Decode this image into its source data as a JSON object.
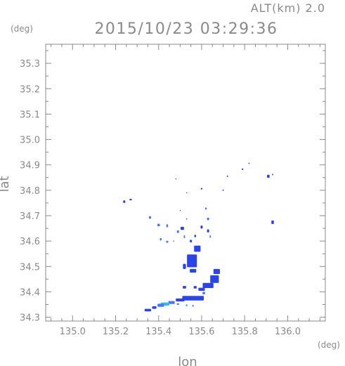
{
  "header": {
    "altitude_label": "ALT(km) 2.0",
    "timestamp": "2015/10/23 03:29:36"
  },
  "axes": {
    "y_unit": "(deg)",
    "x_unit": "(deg)",
    "xlabel": "lon",
    "ylabel": "lat"
  },
  "chart_data": {
    "type": "scatter",
    "xlim": [
      134.875,
      136.175
    ],
    "ylim": [
      34.285,
      35.375
    ],
    "x_ticks": [
      {
        "value": 135.0,
        "label": "135.0"
      },
      {
        "value": 135.2,
        "label": "135.2"
      },
      {
        "value": 135.4,
        "label": "135.4"
      },
      {
        "value": 135.6,
        "label": "135.6"
      },
      {
        "value": 135.8,
        "label": "135.8"
      },
      {
        "value": 136.0,
        "label": "136.0"
      }
    ],
    "y_ticks": [
      {
        "value": 34.3,
        "label": "34.3"
      },
      {
        "value": 34.4,
        "label": "34.4"
      },
      {
        "value": 34.5,
        "label": "34.5"
      },
      {
        "value": 34.6,
        "label": "34.6"
      },
      {
        "value": 34.7,
        "label": "34.7"
      },
      {
        "value": 34.8,
        "label": "34.8"
      },
      {
        "value": 34.9,
        "label": "34.9"
      },
      {
        "value": 35.0,
        "label": "35.0"
      },
      {
        "value": 35.1,
        "label": "35.1"
      },
      {
        "value": 35.2,
        "label": "35.2"
      },
      {
        "value": 35.3,
        "label": "35.3"
      }
    ],
    "grid": false,
    "colors": {
      "strong": "#2a44e6",
      "medium": "#4a78f0",
      "light": "#3ab8e8",
      "frame": "#8a8a8a"
    },
    "cells": [
      {
        "lon": 135.24,
        "lat": 34.755,
        "dlon": 0.01,
        "dlat": 0.01,
        "c": "strong"
      },
      {
        "lon": 135.27,
        "lat": 34.763,
        "dlon": 0.012,
        "dlat": 0.006,
        "c": "strong"
      },
      {
        "lon": 135.36,
        "lat": 34.693,
        "dlon": 0.01,
        "dlat": 0.01,
        "c": "medium"
      },
      {
        "lon": 135.4,
        "lat": 34.663,
        "dlon": 0.012,
        "dlat": 0.01,
        "c": "medium"
      },
      {
        "lon": 135.44,
        "lat": 34.66,
        "dlon": 0.008,
        "dlat": 0.012,
        "c": "medium"
      },
      {
        "lon": 135.41,
        "lat": 34.607,
        "dlon": 0.008,
        "dlat": 0.01,
        "c": "medium"
      },
      {
        "lon": 135.44,
        "lat": 34.597,
        "dlon": 0.01,
        "dlat": 0.008,
        "c": "medium"
      },
      {
        "lon": 135.49,
        "lat": 34.637,
        "dlon": 0.01,
        "dlat": 0.01,
        "c": "medium"
      },
      {
        "lon": 135.51,
        "lat": 34.65,
        "dlon": 0.016,
        "dlat": 0.012,
        "c": "strong"
      },
      {
        "lon": 135.53,
        "lat": 34.687,
        "dlon": 0.006,
        "dlat": 0.006,
        "c": "medium"
      },
      {
        "lon": 135.52,
        "lat": 34.617,
        "dlon": 0.006,
        "dlat": 0.012,
        "c": "medium"
      },
      {
        "lon": 135.55,
        "lat": 34.6,
        "dlon": 0.01,
        "dlat": 0.01,
        "c": "strong"
      },
      {
        "lon": 135.57,
        "lat": 34.62,
        "dlon": 0.008,
        "dlat": 0.01,
        "c": "strong"
      },
      {
        "lon": 135.6,
        "lat": 34.655,
        "dlon": 0.01,
        "dlat": 0.012,
        "c": "strong"
      },
      {
        "lon": 135.63,
        "lat": 34.687,
        "dlon": 0.01,
        "dlat": 0.01,
        "c": "medium"
      },
      {
        "lon": 135.63,
        "lat": 34.64,
        "dlon": 0.01,
        "dlat": 0.012,
        "c": "strong"
      },
      {
        "lon": 135.64,
        "lat": 34.618,
        "dlon": 0.006,
        "dlat": 0.01,
        "c": "medium"
      },
      {
        "lon": 135.62,
        "lat": 34.728,
        "dlon": 0.008,
        "dlat": 0.008,
        "c": "medium"
      },
      {
        "lon": 135.6,
        "lat": 34.806,
        "dlon": 0.008,
        "dlat": 0.006,
        "c": "strong"
      },
      {
        "lon": 135.7,
        "lat": 34.8,
        "dlon": 0.006,
        "dlat": 0.006,
        "c": "strong"
      },
      {
        "lon": 135.72,
        "lat": 34.855,
        "dlon": 0.006,
        "dlat": 0.006,
        "c": "strong"
      },
      {
        "lon": 135.79,
        "lat": 34.883,
        "dlon": 0.008,
        "dlat": 0.006,
        "c": "strong"
      },
      {
        "lon": 135.82,
        "lat": 34.906,
        "dlon": 0.004,
        "dlat": 0.006,
        "c": "strong"
      },
      {
        "lon": 135.91,
        "lat": 34.855,
        "dlon": 0.012,
        "dlat": 0.012,
        "c": "strong"
      },
      {
        "lon": 135.93,
        "lat": 34.862,
        "dlon": 0.006,
        "dlat": 0.006,
        "c": "strong"
      },
      {
        "lon": 135.93,
        "lat": 34.674,
        "dlon": 0.012,
        "dlat": 0.014,
        "c": "strong"
      },
      {
        "lon": 135.58,
        "lat": 34.57,
        "dlon": 0.03,
        "dlat": 0.024,
        "c": "strong"
      },
      {
        "lon": 135.555,
        "lat": 34.522,
        "dlon": 0.046,
        "dlat": 0.05,
        "c": "strong"
      },
      {
        "lon": 135.56,
        "lat": 34.483,
        "dlon": 0.03,
        "dlat": 0.014,
        "c": "strong"
      },
      {
        "lon": 135.52,
        "lat": 34.5,
        "dlon": 0.014,
        "dlat": 0.02,
        "c": "strong"
      },
      {
        "lon": 135.67,
        "lat": 34.48,
        "dlon": 0.03,
        "dlat": 0.02,
        "c": "strong"
      },
      {
        "lon": 135.66,
        "lat": 34.45,
        "dlon": 0.04,
        "dlat": 0.03,
        "c": "strong"
      },
      {
        "lon": 135.63,
        "lat": 34.425,
        "dlon": 0.05,
        "dlat": 0.02,
        "c": "strong"
      },
      {
        "lon": 135.6,
        "lat": 34.41,
        "dlon": 0.03,
        "dlat": 0.012,
        "c": "strong"
      },
      {
        "lon": 135.57,
        "lat": 34.418,
        "dlon": 0.014,
        "dlat": 0.01,
        "c": "strong"
      },
      {
        "lon": 135.52,
        "lat": 34.418,
        "dlon": 0.016,
        "dlat": 0.01,
        "c": "strong"
      },
      {
        "lon": 135.61,
        "lat": 34.395,
        "dlon": 0.012,
        "dlat": 0.01,
        "c": "medium"
      },
      {
        "lon": 135.56,
        "lat": 34.375,
        "dlon": 0.1,
        "dlat": 0.018,
        "c": "strong"
      },
      {
        "lon": 135.5,
        "lat": 34.368,
        "dlon": 0.04,
        "dlat": 0.012,
        "c": "strong"
      },
      {
        "lon": 135.46,
        "lat": 34.358,
        "dlon": 0.03,
        "dlat": 0.012,
        "c": "medium"
      },
      {
        "lon": 135.43,
        "lat": 34.352,
        "dlon": 0.04,
        "dlat": 0.012,
        "c": "light"
      },
      {
        "lon": 135.41,
        "lat": 34.347,
        "dlon": 0.03,
        "dlat": 0.012,
        "c": "medium"
      },
      {
        "lon": 135.38,
        "lat": 34.338,
        "dlon": 0.02,
        "dlat": 0.01,
        "c": "strong"
      },
      {
        "lon": 135.35,
        "lat": 34.328,
        "dlon": 0.03,
        "dlat": 0.01,
        "c": "strong"
      },
      {
        "lon": 135.53,
        "lat": 34.347,
        "dlon": 0.008,
        "dlat": 0.008,
        "c": "light"
      },
      {
        "lon": 135.56,
        "lat": 34.345,
        "dlon": 0.006,
        "dlat": 0.008,
        "c": "medium"
      },
      {
        "lon": 135.49,
        "lat": 34.352,
        "dlon": 0.012,
        "dlat": 0.006,
        "c": "medium"
      },
      {
        "lon": 135.48,
        "lat": 34.845,
        "dlon": 0.004,
        "dlat": 0.004,
        "c": "strong"
      },
      {
        "lon": 135.53,
        "lat": 34.79,
        "dlon": 0.004,
        "dlat": 0.004,
        "c": "strong"
      },
      {
        "lon": 135.5,
        "lat": 34.72,
        "dlon": 0.004,
        "dlat": 0.004,
        "c": "strong"
      },
      {
        "lon": 135.47,
        "lat": 34.6,
        "dlon": 0.004,
        "dlat": 0.004,
        "c": "strong"
      }
    ]
  }
}
